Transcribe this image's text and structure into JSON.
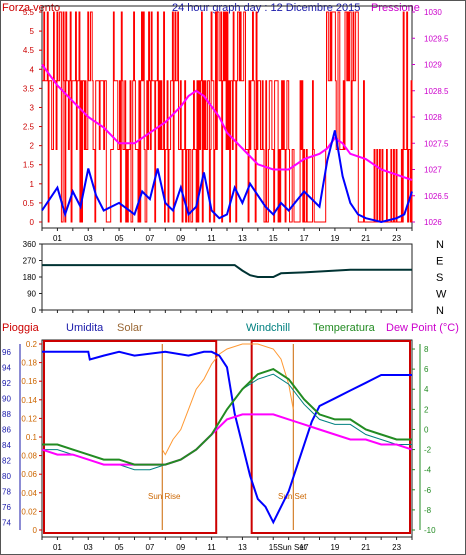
{
  "header": {
    "title": "24 hour graph day : 12 Dicembre 2015",
    "left_label": "Forza vento",
    "right_label": "Pressione"
  },
  "colors": {
    "wind": "#ff0000",
    "gust": "#0000ff",
    "pressure": "#ff00ff",
    "direction": "#003333",
    "rain_box": "#cc0000",
    "humidity": "#0000ff",
    "solar": "#ff9933",
    "windchill": "#008080",
    "temperature": "#228b22",
    "dewpoint": "#ff00ff",
    "sun_line": "#cc6600"
  },
  "chart_data": [
    {
      "type": "line",
      "name": "wind-pressure",
      "x_ticks": [
        "01",
        "03",
        "05",
        "07",
        "09",
        "11",
        "13",
        "15",
        "17",
        "19",
        "21",
        "23"
      ],
      "y_left_ticks": [
        "0",
        "0.5",
        "1",
        "1.5",
        "2",
        "2.5",
        "3",
        "3.5",
        "4",
        "4.5",
        "5",
        "5.5"
      ],
      "y_right_ticks": [
        "1026",
        "1026.5",
        "1027",
        "1027.5",
        "1028",
        "1028.5",
        "1029",
        "1029.5",
        "1030"
      ],
      "ylim_left": [
        0,
        5.5
      ],
      "ylim_right": [
        1026,
        1030
      ],
      "xlim": [
        0,
        24
      ],
      "wind_levels": [
        0,
        0.5,
        1.9,
        3.7,
        5.5
      ],
      "pressure": {
        "x": [
          0,
          0.5,
          1.0,
          2.0,
          3.0,
          4.0,
          5.0,
          6.0,
          7.0,
          8.0,
          9.0,
          9.5,
          10.0,
          10.5,
          11.0,
          11.5,
          12.0,
          13.0,
          14.0,
          15.0,
          16.0,
          17.0,
          18.0,
          18.5,
          19.0,
          19.5,
          20.0,
          21.0,
          22.0,
          23.0,
          24.0
        ],
        "y": [
          1029.0,
          1028.8,
          1028.6,
          1028.3,
          1028.0,
          1027.8,
          1027.5,
          1027.5,
          1027.7,
          1027.9,
          1028.2,
          1028.4,
          1028.5,
          1028.4,
          1028.2,
          1028.0,
          1027.7,
          1027.4,
          1027.1,
          1027.0,
          1027.0,
          1027.2,
          1027.3,
          1027.4,
          1027.6,
          1027.5,
          1027.3,
          1027.2,
          1027.0,
          1026.9,
          1026.8
        ]
      },
      "gust": {
        "x": [
          0,
          0.5,
          1.0,
          1.5,
          2.0,
          2.5,
          3.0,
          3.5,
          4.0,
          5.0,
          6.0,
          6.5,
          7.0,
          7.5,
          8.0,
          8.5,
          9.0,
          9.5,
          10.0,
          10.5,
          11.0,
          11.5,
          12.0,
          12.5,
          13.0,
          13.5,
          14.0,
          14.5,
          15.0,
          15.5,
          16.0,
          17.0,
          18.0,
          18.5,
          19.0,
          19.5,
          20.0,
          20.5,
          21.0,
          22.0,
          23.0,
          23.5,
          24.0
        ],
        "y": [
          0.3,
          0.6,
          0.9,
          0.2,
          0.8,
          0.4,
          1.4,
          0.7,
          0.3,
          0.5,
          0.2,
          0.8,
          0.6,
          1.4,
          0.5,
          0.3,
          0.9,
          0.2,
          0.4,
          1.3,
          0.3,
          0.1,
          0.2,
          0.9,
          0.5,
          1.0,
          0.7,
          0.4,
          0.2,
          0.5,
          0.3,
          0.8,
          0.4,
          1.6,
          2.4,
          1.2,
          0.5,
          0.2,
          0.1,
          0.0,
          0.1,
          0.2,
          0.8
        ]
      }
    },
    {
      "type": "line",
      "name": "wind-direction",
      "y_ticks": [
        "0",
        "90",
        "180",
        "270",
        "360"
      ],
      "ylim": [
        0,
        360
      ],
      "compass": [
        "N",
        "W",
        "S",
        "E",
        "N"
      ],
      "x": [
        0,
        12.5,
        13.0,
        13.5,
        14.0,
        15.0,
        15.5,
        17.0,
        19.0,
        20.0,
        24.0
      ],
      "y": [
        245,
        245,
        215,
        190,
        180,
        180,
        200,
        205,
        215,
        220,
        220
      ]
    },
    {
      "type": "line",
      "name": "temperature-humidity",
      "labels": {
        "rain": "Pioggia",
        "humidity": "Umidita",
        "solar": "Solar",
        "windchill": "Windchill",
        "temperature": "Temperatura",
        "dewpoint": "Dew Point (°C)"
      },
      "sunrise_label": "Sun Rise",
      "sunset_label": "Sun Set",
      "sunset_tick": "Sun Set",
      "sunrise_x": 7.8,
      "sunset_x": 16.3,
      "rain_ticks": [
        "0",
        "0.02",
        "0.04",
        "0.06",
        "0.08",
        "0.1",
        "0.12",
        "0.14",
        "0.16",
        "0.18",
        "0.2"
      ],
      "humidity_ticks": [
        "74",
        "76",
        "78",
        "80",
        "82",
        "84",
        "86",
        "88",
        "90",
        "92",
        "94",
        "96"
      ],
      "temp_ticks": [
        "-10",
        "-8",
        "-6",
        "-4",
        "-2",
        "0",
        "2",
        "4",
        "6",
        "8"
      ],
      "ylim_humidity": [
        73,
        97
      ],
      "ylim_temp": [
        -10,
        8.5
      ],
      "x_ticks": [
        "01",
        "03",
        "05",
        "07",
        "09",
        "11",
        "13",
        "15",
        "17",
        "19",
        "21",
        "23"
      ],
      "humidity": {
        "x": [
          0,
          3.0,
          3.1,
          4.0,
          5.0,
          6.0,
          8.0,
          9.5,
          10.5,
          11.0,
          11.5,
          12.0,
          12.5,
          13.0,
          13.5,
          14.0,
          14.5,
          15.0,
          15.5,
          16.0,
          16.5,
          17.0,
          17.5,
          18.0,
          19.0,
          20.0,
          21.0,
          22.0,
          23.0,
          24.0
        ],
        "y": [
          96,
          96,
          95,
          95.5,
          96,
          95.5,
          96,
          95.5,
          96,
          96,
          95.5,
          94,
          88,
          84,
          80,
          77,
          76,
          74,
          76,
          78,
          81,
          84,
          87,
          89,
          90,
          91,
          92,
          93,
          93,
          93
        ]
      },
      "temperature": {
        "x": [
          0,
          1.0,
          2.0,
          3.0,
          4.0,
          5.0,
          6.0,
          7.0,
          8.0,
          9.0,
          10.0,
          11.0,
          12.0,
          13.0,
          14.0,
          15.0,
          16.0,
          17.0,
          18.0,
          19.0,
          20.0,
          21.0,
          22.0,
          23.0,
          24.0
        ],
        "y": [
          -1.5,
          -1.5,
          -2.0,
          -2.5,
          -3.0,
          -3.0,
          -3.5,
          -3.5,
          -3.5,
          -3.0,
          -2.0,
          -0.5,
          2.0,
          4.0,
          5.5,
          6.0,
          5.0,
          3.0,
          1.5,
          1.0,
          1.0,
          0.0,
          -0.5,
          -1.0,
          -1.0
        ]
      },
      "windchill": {
        "x": [
          0,
          1.0,
          2.0,
          3.0,
          4.0,
          5.0,
          6.0,
          7.0,
          8.0,
          9.0,
          10.0,
          11.0,
          12.0,
          13.0,
          14.0,
          15.0,
          16.0,
          17.0,
          18.0,
          19.0,
          20.0,
          21.0,
          22.0,
          23.0,
          24.0
        ],
        "y": [
          -2.0,
          -2.0,
          -2.5,
          -3.0,
          -3.5,
          -3.5,
          -4.0,
          -4.0,
          -3.5,
          -3.0,
          -2.0,
          -0.5,
          2.0,
          4.0,
          5.0,
          5.5,
          4.5,
          2.5,
          1.0,
          0.5,
          0.5,
          -0.5,
          -1.0,
          -1.5,
          -1.5
        ]
      },
      "dewpoint": {
        "x": [
          0,
          1.0,
          2.0,
          3.0,
          4.0,
          5.0,
          6.0,
          7.0,
          8.0,
          9.0,
          10.0,
          11.0,
          12.0,
          13.0,
          14.0,
          15.0,
          16.0,
          17.0,
          18.0,
          19.0,
          20.0,
          21.0,
          22.0,
          23.0,
          24.0
        ],
        "y": [
          -2.0,
          -2.5,
          -2.5,
          -3.0,
          -3.5,
          -3.5,
          -3.5,
          -3.5,
          -3.5,
          -3.0,
          -2.0,
          -0.5,
          1.0,
          1.5,
          1.5,
          1.5,
          1.0,
          0.5,
          0.0,
          -0.5,
          -1.0,
          -1.0,
          -1.5,
          -1.5,
          -2.0
        ]
      },
      "solar": {
        "x": [
          7.8,
          8.0,
          8.5,
          9.0,
          9.5,
          10.0,
          10.5,
          11.0,
          11.5,
          12.0,
          13.0,
          14.0,
          15.0,
          15.5,
          16.0,
          16.3
        ],
        "y": [
          -2.0,
          -2.5,
          -1.0,
          0.0,
          2.0,
          4.0,
          5.0,
          6.5,
          7.5,
          8.0,
          8.5,
          8.5,
          8.0,
          7.0,
          4.5,
          2.0
        ]
      }
    }
  ]
}
